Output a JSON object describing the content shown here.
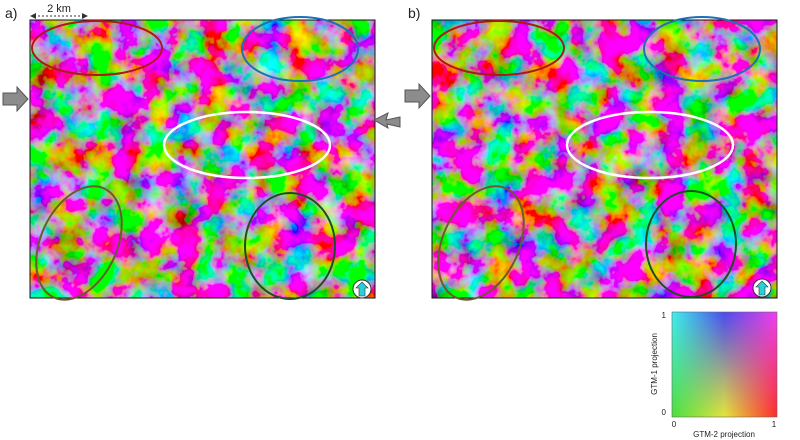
{
  "panels": [
    {
      "label": "a)",
      "scale_bar": "2 km"
    },
    {
      "label": "b)"
    }
  ],
  "color_key": {
    "y_label": "GTM-1 projection",
    "x_label": "GTM-2 projection",
    "yticks": [
      "1",
      "0"
    ],
    "xticks": [
      "0",
      "1"
    ]
  }
}
